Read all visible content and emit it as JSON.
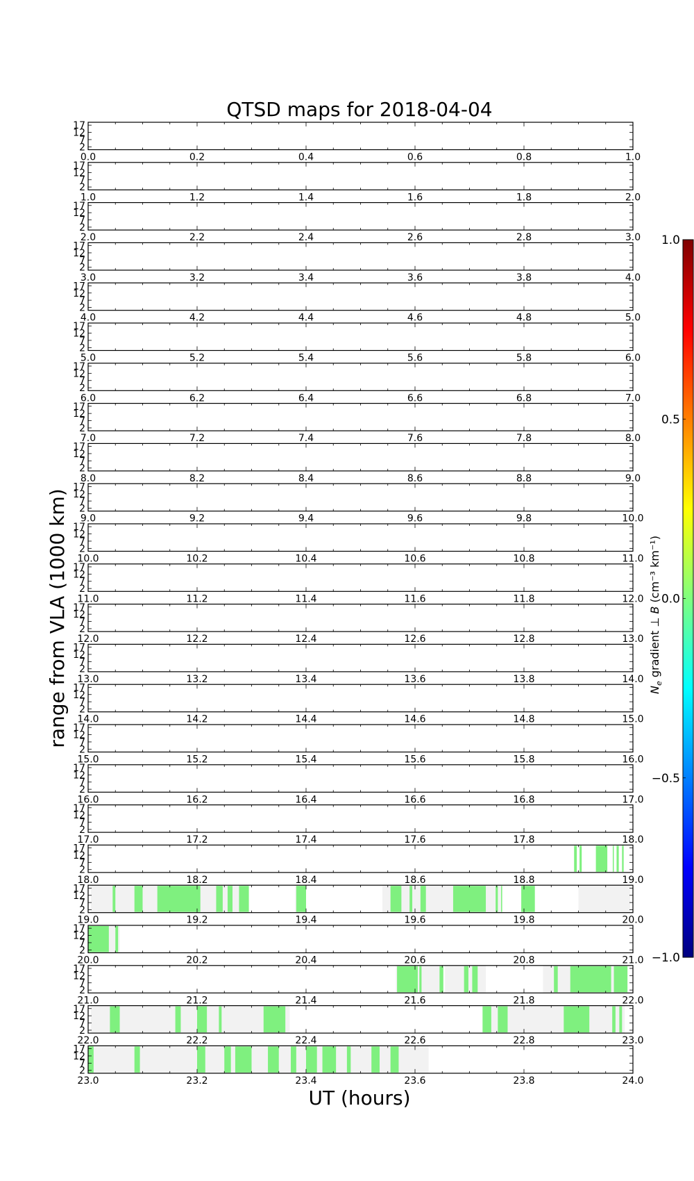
{
  "chart_data": {
    "type": "heatmap",
    "title": "QTSD maps for 2018-04-04",
    "xlabel": "UT (hours)",
    "ylabel": "range from VLA (1000 km)",
    "yticks": [
      "2",
      "7",
      "12",
      "17"
    ],
    "ylim": [
      0,
      19
    ],
    "panels": [
      {
        "xlim": [
          0,
          1
        ],
        "xticks": [
          "0.0",
          "0.2",
          "0.4",
          "0.6",
          "0.8",
          "1.0"
        ],
        "coverage": [],
        "green": []
      },
      {
        "xlim": [
          1,
          2
        ],
        "xticks": [
          "1.0",
          "1.2",
          "1.4",
          "1.6",
          "1.8",
          "2.0"
        ],
        "coverage": [],
        "green": []
      },
      {
        "xlim": [
          2,
          3
        ],
        "xticks": [
          "2.0",
          "2.2",
          "2.4",
          "2.6",
          "2.8",
          "3.0"
        ],
        "coverage": [],
        "green": []
      },
      {
        "xlim": [
          3,
          4
        ],
        "xticks": [
          "3.0",
          "3.2",
          "3.4",
          "3.6",
          "3.8",
          "4.0"
        ],
        "coverage": [],
        "green": []
      },
      {
        "xlim": [
          4,
          5
        ],
        "xticks": [
          "4.0",
          "4.2",
          "4.4",
          "4.6",
          "4.8",
          "5.0"
        ],
        "coverage": [],
        "green": []
      },
      {
        "xlim": [
          5,
          6
        ],
        "xticks": [
          "5.0",
          "5.2",
          "5.4",
          "5.6",
          "5.8",
          "6.0"
        ],
        "coverage": [],
        "green": []
      },
      {
        "xlim": [
          6,
          7
        ],
        "xticks": [
          "6.0",
          "6.2",
          "6.4",
          "6.6",
          "6.8",
          "7.0"
        ],
        "coverage": [],
        "green": []
      },
      {
        "xlim": [
          7,
          8
        ],
        "xticks": [
          "7.0",
          "7.2",
          "7.4",
          "7.6",
          "7.8",
          "8.0"
        ],
        "coverage": [],
        "green": []
      },
      {
        "xlim": [
          8,
          9
        ],
        "xticks": [
          "8.0",
          "8.2",
          "8.4",
          "8.6",
          "8.8",
          "9.0"
        ],
        "coverage": [],
        "green": []
      },
      {
        "xlim": [
          9,
          10
        ],
        "xticks": [
          "9.0",
          "9.2",
          "9.4",
          "9.6",
          "9.8",
          "10.0"
        ],
        "coverage": [],
        "green": []
      },
      {
        "xlim": [
          10,
          11
        ],
        "xticks": [
          "10.0",
          "10.2",
          "10.4",
          "10.6",
          "10.8",
          "11.0"
        ],
        "coverage": [],
        "green": []
      },
      {
        "xlim": [
          11,
          12
        ],
        "xticks": [
          "11.0",
          "11.2",
          "11.4",
          "11.6",
          "11.8",
          "12.0"
        ],
        "coverage": [],
        "green": []
      },
      {
        "xlim": [
          12,
          13
        ],
        "xticks": [
          "12.0",
          "12.2",
          "12.4",
          "12.6",
          "12.8",
          "13.0"
        ],
        "coverage": [],
        "green": []
      },
      {
        "xlim": [
          13,
          14
        ],
        "xticks": [
          "13.0",
          "13.2",
          "13.4",
          "13.6",
          "13.8",
          "14.0"
        ],
        "coverage": [],
        "green": []
      },
      {
        "xlim": [
          14,
          15
        ],
        "xticks": [
          "14.0",
          "14.2",
          "14.4",
          "14.6",
          "14.8",
          "15.0"
        ],
        "coverage": [],
        "green": []
      },
      {
        "xlim": [
          15,
          16
        ],
        "xticks": [
          "15.0",
          "15.2",
          "15.4",
          "15.6",
          "15.8",
          "16.0"
        ],
        "coverage": [],
        "green": []
      },
      {
        "xlim": [
          16,
          17
        ],
        "xticks": [
          "16.0",
          "16.2",
          "16.4",
          "16.6",
          "16.8",
          "17.0"
        ],
        "coverage": [],
        "green": []
      },
      {
        "xlim": [
          17,
          18
        ],
        "xticks": [
          "17.0",
          "17.2",
          "17.4",
          "17.6",
          "17.8",
          "18.0"
        ],
        "coverage": [],
        "green": []
      },
      {
        "xlim": [
          18,
          19
        ],
        "xticks": [
          "18.0",
          "18.2",
          "18.4",
          "18.6",
          "18.8",
          "19.0"
        ],
        "coverage": [],
        "green": [
          [
            18.892,
            18.897
          ],
          [
            18.902,
            18.906
          ],
          [
            18.932,
            18.953
          ],
          [
            18.963,
            18.965
          ],
          [
            18.97,
            18.974
          ],
          [
            18.98,
            18.983
          ]
        ]
      },
      {
        "xlim": [
          19,
          20
        ],
        "xticks": [
          "19.0",
          "19.2",
          "19.4",
          "19.6",
          "19.8",
          "20.0"
        ],
        "coverage": [
          [
            19.005,
            19.295
          ],
          [
            19.38,
            19.4
          ],
          [
            19.54,
            19.76
          ],
          [
            19.9,
            19.995
          ]
        ],
        "green": [
          [
            19.045,
            19.05
          ],
          [
            19.085,
            19.1
          ],
          [
            19.127,
            19.206
          ],
          [
            19.235,
            19.247
          ],
          [
            19.256,
            19.265
          ],
          [
            19.277,
            19.295
          ],
          [
            19.382,
            19.4
          ],
          [
            19.555,
            19.575
          ],
          [
            19.59,
            19.595
          ],
          [
            19.61,
            19.62
          ],
          [
            19.67,
            19.73
          ],
          [
            19.748,
            19.752
          ],
          [
            19.758,
            19.76
          ],
          [
            19.795,
            19.82
          ]
        ]
      },
      {
        "xlim": [
          20,
          21
        ],
        "xticks": [
          "20.0",
          "20.2",
          "20.4",
          "20.6",
          "20.8",
          "21.0"
        ],
        "coverage": [
          [
            20.0,
            20.058
          ]
        ],
        "green": [
          [
            20.0,
            20.038
          ],
          [
            20.05,
            20.055
          ]
        ]
      },
      {
        "xlim": [
          21,
          22
        ],
        "xticks": [
          "21.0",
          "21.2",
          "21.4",
          "21.6",
          "21.8",
          "22.0"
        ],
        "coverage": [
          [
            21.565,
            21.645
          ],
          [
            21.655,
            21.73
          ],
          [
            21.835,
            21.985
          ]
        ],
        "green": [
          [
            21.567,
            21.605
          ],
          [
            21.608,
            21.612
          ],
          [
            21.645,
            21.652
          ],
          [
            21.69,
            21.698
          ],
          [
            21.705,
            21.715
          ],
          [
            21.855,
            21.862
          ],
          [
            21.885,
            21.96
          ],
          [
            21.965,
            21.99
          ]
        ]
      },
      {
        "xlim": [
          22,
          23
        ],
        "xticks": [
          "22.0",
          "22.2",
          "22.4",
          "22.6",
          "22.8",
          "23.0"
        ],
        "coverage": [
          [
            22.005,
            22.37
          ],
          [
            22.74,
            22.985
          ]
        ],
        "green": [
          [
            22.04,
            22.058
          ],
          [
            22.16,
            22.17
          ],
          [
            22.2,
            22.218
          ],
          [
            22.24,
            22.245
          ],
          [
            22.322,
            22.362
          ],
          [
            22.724,
            22.74
          ],
          [
            22.752,
            22.77
          ],
          [
            22.873,
            22.92
          ],
          [
            22.962,
            22.968
          ],
          [
            22.975,
            22.98
          ]
        ]
      },
      {
        "xlim": [
          23,
          24
        ],
        "xticks": [
          "23.0",
          "23.2",
          "23.4",
          "23.6",
          "23.8",
          "24.0"
        ],
        "coverage": [
          [
            23.0,
            23.625
          ]
        ],
        "green": [
          [
            23.0,
            23.01
          ],
          [
            23.085,
            23.095
          ],
          [
            23.2,
            23.215
          ],
          [
            23.25,
            23.262
          ],
          [
            23.27,
            23.3
          ],
          [
            23.33,
            23.35
          ],
          [
            23.372,
            23.382
          ],
          [
            23.4,
            23.42
          ],
          [
            23.43,
            23.455
          ],
          [
            23.475,
            23.482
          ],
          [
            23.52,
            23.535
          ],
          [
            23.555,
            23.57
          ]
        ]
      }
    ],
    "colorbar": {
      "label": "Ne gradient ⊥ B (cm⁻³ km⁻¹)",
      "label_parts": {
        "n": "N",
        "e": "e",
        "mid": " gradient ⊥ ",
        "b": "B",
        "units": " (cm⁻³ km⁻¹)"
      },
      "ticks": [
        "1.0",
        "0.5",
        "0.0",
        "−0.5",
        "−1.0"
      ],
      "range": [
        -1.0,
        1.0
      ],
      "colormap": [
        "#00007f",
        "#0000ff",
        "#007fff",
        "#00ffff",
        "#7fff7f",
        "#ffff00",
        "#ff7f00",
        "#ff0000",
        "#7f0000"
      ]
    },
    "colors": {
      "green": "#7ff07f",
      "coverage": "#f2f2f2"
    }
  }
}
